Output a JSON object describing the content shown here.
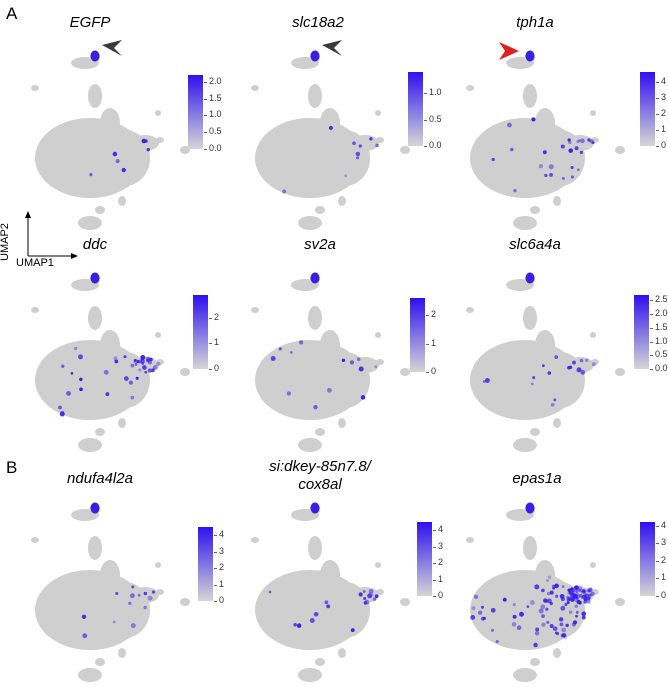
{
  "panels": {
    "A": {
      "label": "A"
    },
    "B": {
      "label": "B"
    }
  },
  "axes": {
    "x": "UMAP1",
    "y": "UMAP2"
  },
  "chart_data": [
    {
      "type": "scatter",
      "gene": "EGFP",
      "title": "EGFP",
      "colorbar": {
        "ticks": [
          "0.0",
          "0.5",
          "1.0",
          "1.5",
          "2.0"
        ],
        "max": 2.2
      },
      "arrow": "dark",
      "density": 0.03
    },
    {
      "type": "scatter",
      "gene": "slc18a2",
      "title": "slc18a2",
      "colorbar": {
        "ticks": [
          "0.0",
          "0.5",
          "1.0"
        ],
        "max": 1.4
      },
      "arrow": "dark",
      "density": 0.04
    },
    {
      "type": "scatter",
      "gene": "tph1a",
      "title": "tph1a",
      "colorbar": {
        "ticks": [
          "0",
          "1",
          "2",
          "3",
          "4"
        ],
        "max": 4.6
      },
      "arrow": "red",
      "density": 0.12
    },
    {
      "type": "scatter",
      "gene": "ddc",
      "title": "ddc",
      "colorbar": {
        "ticks": [
          "0",
          "1",
          "2"
        ],
        "max": 2.9
      },
      "arrow": "none",
      "density": 0.18
    },
    {
      "type": "scatter",
      "gene": "sv2a",
      "title": "sv2a",
      "colorbar": {
        "ticks": [
          "0",
          "1",
          "2"
        ],
        "max": 2.6
      },
      "arrow": "none",
      "density": 0.06
    },
    {
      "type": "scatter",
      "gene": "slc6a4a",
      "title": "slc6a4a",
      "colorbar": {
        "ticks": [
          "0.0",
          "0.5",
          "1.0",
          "1.5",
          "2.0",
          "2.5"
        ],
        "max": 2.7
      },
      "arrow": "none",
      "density": 0.08
    },
    {
      "type": "scatter",
      "gene": "ndufa4l2a",
      "title": "ndufa4l2a",
      "colorbar": {
        "ticks": [
          "0",
          "1",
          "2",
          "3",
          "4"
        ],
        "max": 4.5
      },
      "arrow": "none",
      "density": 0.06
    },
    {
      "type": "scatter",
      "gene": "si:dkey-85n7.8/cox8al",
      "title_line1": "si:dkey-85n7.8/",
      "title_line2": "cox8al",
      "colorbar": {
        "ticks": [
          "0",
          "1",
          "2",
          "3",
          "4"
        ],
        "max": 4.5
      },
      "arrow": "none",
      "density": 0.08
    },
    {
      "type": "scatter",
      "gene": "epas1a",
      "title": "epas1a",
      "colorbar": {
        "ticks": [
          "0",
          "1",
          "2",
          "3",
          "4"
        ],
        "max": 4.2
      },
      "arrow": "none",
      "density": 0.55
    }
  ]
}
